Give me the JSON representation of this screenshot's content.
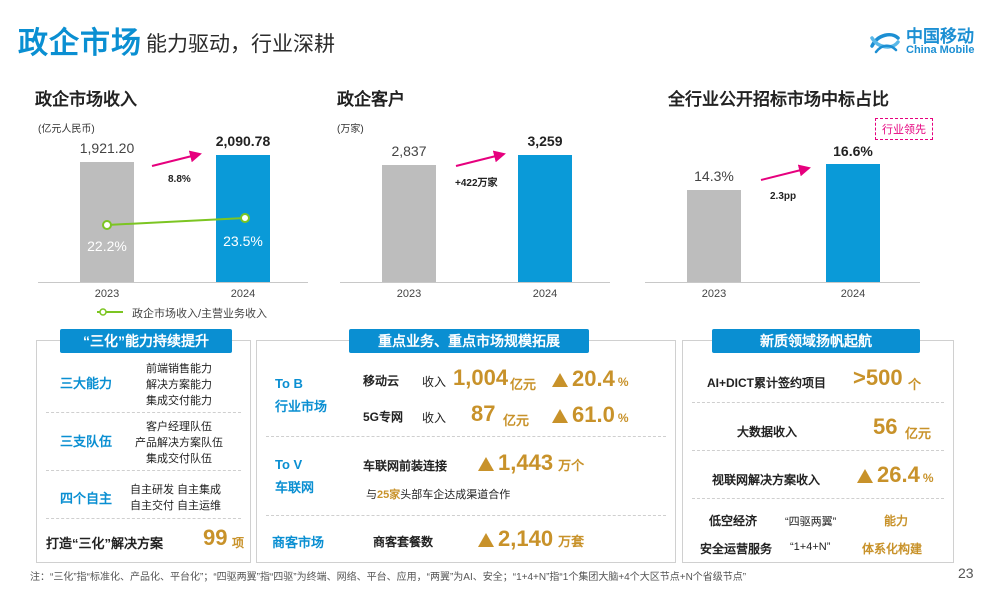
{
  "header": {
    "title": "政企市场",
    "subtitle": "能力驱动，行业深耕",
    "logo_cn": "中国移动",
    "logo_en": "China Mobile"
  },
  "charts": [
    {
      "title": "政企市场收入",
      "unit": "(亿元人民币)",
      "categories": [
        "2023",
        "2024"
      ],
      "values": [
        1921.2,
        2090.78
      ],
      "value_labels": [
        "1,921.20",
        "2,090.78"
      ],
      "growth": "8.8%",
      "ratio_labels": [
        "22.2%",
        "23.5%"
      ],
      "legend": "政企市场收入/主营业务收入"
    },
    {
      "title": "政企客户",
      "unit": "(万家)",
      "categories": [
        "2023",
        "2024"
      ],
      "values": [
        2837,
        3259
      ],
      "value_labels": [
        "2,837",
        "3,259"
      ],
      "growth": "+422万家"
    },
    {
      "title": "全行业公开招标市场中标占比",
      "categories": [
        "2023",
        "2024"
      ],
      "values": [
        14.3,
        16.6
      ],
      "value_labels": [
        "14.3%",
        "16.6%"
      ],
      "growth": "2.3pp",
      "badge": "行业领先"
    }
  ],
  "chart_data": [
    {
      "type": "bar",
      "title": "政企市场收入",
      "categories": [
        "2023",
        "2024"
      ],
      "series": [
        {
          "name": "政企市场收入",
          "values": [
            1921.2,
            2090.78
          ]
        },
        {
          "name": "政企市场收入/主营业务收入",
          "values": [
            22.2,
            23.5
          ]
        }
      ],
      "ylabel": "(亿元人民币)"
    },
    {
      "type": "bar",
      "title": "政企客户",
      "categories": [
        "2023",
        "2024"
      ],
      "values": [
        2837,
        3259
      ],
      "ylabel": "(万家)"
    },
    {
      "type": "bar",
      "title": "全行业公开招标市场中标占比",
      "categories": [
        "2023",
        "2024"
      ],
      "values": [
        14.3,
        16.6
      ]
    }
  ],
  "left_panel": {
    "head": "“三化”能力持续提升",
    "groups": [
      {
        "label": "三大能力",
        "items": [
          "前端销售能力",
          "解决方案能力",
          "集成交付能力"
        ]
      },
      {
        "label": "三支队伍",
        "items": [
          "客户经理队伍",
          "产品解决方案队伍",
          "集成交付队伍"
        ]
      },
      {
        "label": "四个自主",
        "items": [
          "自主研发  自主集成",
          "自主交付  自主运维"
        ]
      }
    ],
    "footer_label": "打造“三化”解决方案",
    "footer_value": "99",
    "footer_unit": "项"
  },
  "mid_panel": {
    "head": "重点业务、重点市场规模拓展",
    "tob_label_1": "To B",
    "tob_label_2": "行业市场",
    "cloud_name": "移动云",
    "cloud_rev_label": "收入",
    "cloud_value": "1,004",
    "cloud_unit": "亿元",
    "cloud_growth": "20.4",
    "cloud_growth_unit": "%",
    "net_name": "5G专网",
    "net_rev_label": "收入",
    "net_value": "87",
    "net_unit": "亿元",
    "net_growth": "61.0",
    "net_growth_unit": "%",
    "tov_label_1": "To V",
    "tov_label_2": "车联网",
    "car_name": "车联网前装连接",
    "car_value": "1,443",
    "car_unit": "万个",
    "car_note_pre": "与",
    "car_note_num": "25家",
    "car_note_post": "头部车企达成渠道合作",
    "biz_label": "商客市场",
    "biz_name": "商客套餐数",
    "biz_value": "2,140",
    "biz_unit": "万套"
  },
  "right_panel": {
    "head": "新质领域扬帆起航",
    "rows": [
      {
        "label": "AI+DICT累计签约项目",
        "value": ">500",
        "unit": "个"
      },
      {
        "label": "大数据收入",
        "value": "56",
        "unit": "亿元"
      },
      {
        "label": "视联网解决方案收入",
        "value": "26.4",
        "unit": "%"
      }
    ],
    "low_alt_label": "低空经济",
    "low_alt_quote": "“四驱两翼”",
    "low_alt_value": "能力",
    "sec_label": "安全运营服务",
    "sec_quote": "“1+4+N”",
    "sec_value": "体系化构建"
  },
  "footnote": "注：“三化”指“标准化、产品化、平台化”；“四驱两翼”指“四驱”为终端、网络、平台、应用，“两翼”为AI、安全；“1+4+N”指“1个集团大脑+4个大区节点+N个省级节点”",
  "page_number": "23",
  "colors": {
    "brand_blue": "#0a8fd2",
    "bar_blue": "#0a9ad8",
    "bar_gray": "#bdbdbd",
    "gold": "#c8922a",
    "pink_arrow": "#e6007e",
    "green_line": "#7cc522"
  }
}
